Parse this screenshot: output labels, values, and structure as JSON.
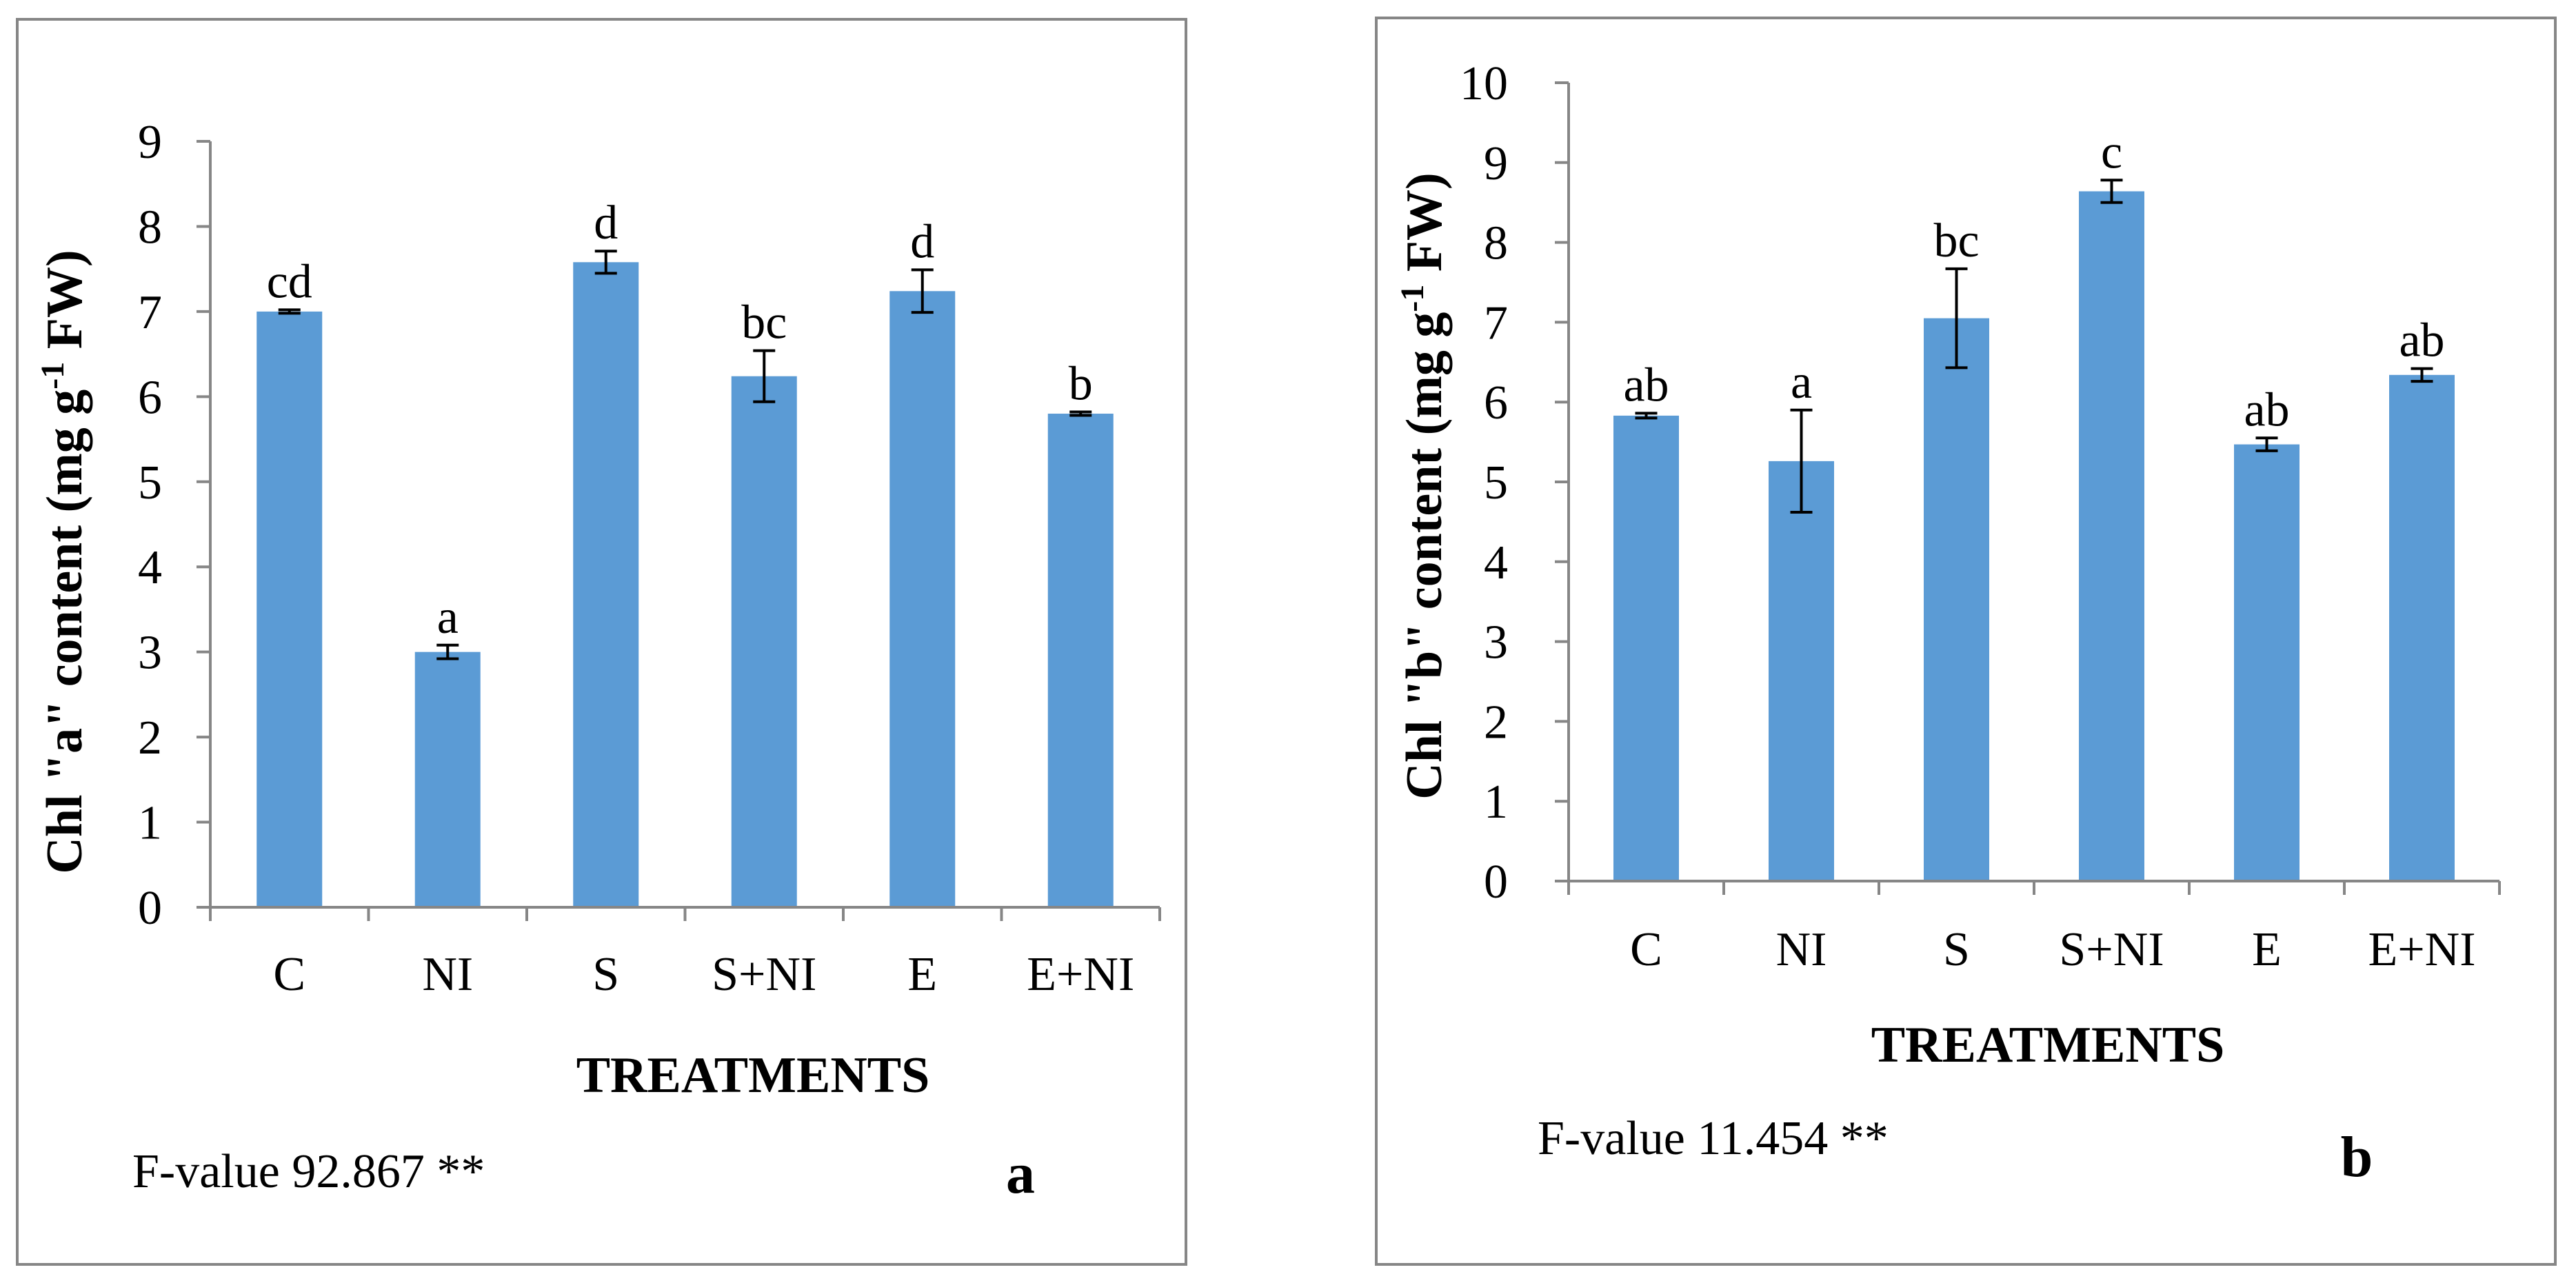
{
  "colors": {
    "bar": "#5b9bd5",
    "axis": "#868686",
    "frame": "#868686",
    "error_bar": "#000000"
  },
  "chart_data": [
    {
      "type": "bar",
      "panel_label": "a",
      "categories": [
        "C",
        "NI",
        "S",
        "S+NI",
        "E",
        "E+NI"
      ],
      "values": [
        7.0,
        3.0,
        7.58,
        6.24,
        7.24,
        5.8
      ],
      "errors": [
        0.02,
        0.08,
        0.13,
        0.3,
        0.25,
        0.02
      ],
      "significance": [
        "cd",
        "a",
        "d",
        "bc",
        "d",
        "b"
      ],
      "xlabel": "TREATMENTS",
      "ylabel_parts": [
        "Chl \"a\" content (mg g",
        "-1",
        " FW)"
      ],
      "ylim": [
        0,
        9
      ],
      "yticks": [
        0,
        1,
        2,
        3,
        4,
        5,
        6,
        7,
        8,
        9
      ],
      "note": "F-value 92.867 **",
      "grid": false
    },
    {
      "type": "bar",
      "panel_label": "b",
      "categories": [
        "C",
        "NI",
        "S",
        "S+NI",
        "E",
        "E+NI"
      ],
      "values": [
        5.83,
        5.26,
        7.05,
        8.64,
        5.47,
        6.34
      ],
      "errors": [
        0.03,
        0.64,
        0.62,
        0.14,
        0.08,
        0.08
      ],
      "significance": [
        "ab",
        "a",
        "bc",
        "c",
        "ab",
        "ab"
      ],
      "xlabel": "TREATMENTS",
      "ylabel_parts": [
        "Chl \"b\" content (mg g",
        "-1",
        " FW)"
      ],
      "ylim": [
        0,
        10
      ],
      "yticks": [
        0,
        1,
        2,
        3,
        4,
        5,
        6,
        7,
        8,
        9,
        10
      ],
      "note": "F-value 11.454 **",
      "grid": false
    }
  ]
}
